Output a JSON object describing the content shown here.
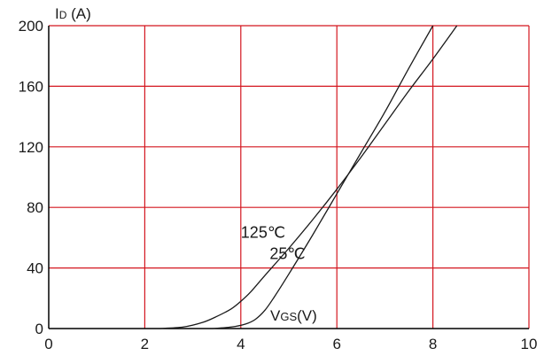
{
  "chart_data": {
    "type": "line",
    "title": "",
    "xlabel": "VGS(V)",
    "xlabel_parts": {
      "main": "V",
      "sub": "GS",
      "unit": "(V)"
    },
    "ylabel": "ID (A)",
    "ylabel_parts": {
      "main": "I",
      "sub": "D",
      "unit": " (A)"
    },
    "xlim": [
      0,
      10
    ],
    "ylim": [
      0,
      200
    ],
    "xticks": [
      0,
      2,
      4,
      6,
      8,
      10
    ],
    "yticks": [
      0,
      40,
      80,
      120,
      160,
      200
    ],
    "grid": true,
    "colors": {
      "grid": "#d4161f",
      "axis": "#000000",
      "line": "#1a1a1a",
      "text": "#1a1a1a"
    },
    "series": [
      {
        "name": "125℃",
        "x": [
          2.3,
          2.8,
          3.2,
          3.5,
          3.8,
          4.0,
          4.2,
          4.5,
          5.0,
          5.5,
          6.0,
          6.5,
          7.0,
          7.5,
          8.0,
          8.5
        ],
        "y": [
          0,
          1,
          4,
          8,
          13,
          18,
          24,
          35,
          53,
          72,
          92,
          113,
          135,
          157,
          178,
          200
        ]
      },
      {
        "name": "25℃",
        "x": [
          3.4,
          3.8,
          4.1,
          4.3,
          4.5,
          4.7,
          5.0,
          5.5,
          6.0,
          6.5,
          7.0,
          7.5,
          8.0
        ],
        "y": [
          0,
          1,
          3,
          6,
          12,
          21,
          36,
          62,
          89,
          116,
          143,
          172,
          200
        ]
      }
    ],
    "annotations": [
      {
        "text": "125℃",
        "series": 0,
        "x": 4.0,
        "y": 60
      },
      {
        "text": "25℃",
        "series": 1,
        "x": 4.6,
        "y": 46
      }
    ]
  }
}
